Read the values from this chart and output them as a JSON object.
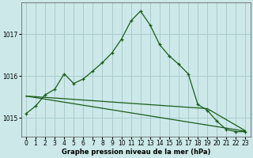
{
  "title": "Graphe pression niveau de la mer (hPa)",
  "bg_color": "#cce8e8",
  "grid_color": "#aacccc",
  "line_color": "#1a5c1a",
  "xlim": [
    -0.5,
    23.5
  ],
  "ylim": [
    1014.55,
    1017.75
  ],
  "yticks": [
    1015,
    1016,
    1017
  ],
  "xticks": [
    0,
    1,
    2,
    3,
    4,
    5,
    6,
    7,
    8,
    9,
    10,
    11,
    12,
    13,
    14,
    15,
    16,
    17,
    18,
    19,
    20,
    21,
    22,
    23
  ],
  "line1_x": [
    0,
    1,
    2,
    3,
    4,
    5,
    6,
    7,
    8,
    9,
    10,
    11,
    12,
    13,
    14,
    15,
    16,
    17,
    18,
    19,
    20,
    21,
    22,
    23
  ],
  "line1_y": [
    1015.1,
    1015.28,
    1015.55,
    1015.68,
    1016.05,
    1015.82,
    1015.93,
    1016.12,
    1016.32,
    1016.55,
    1016.88,
    1017.32,
    1017.55,
    1017.22,
    1016.75,
    1016.48,
    1016.28,
    1016.05,
    1015.32,
    1015.18,
    1014.92,
    1014.72,
    1014.67,
    1014.67
  ],
  "line2_x": [
    0,
    23
  ],
  "line2_y": [
    1015.52,
    1014.68
  ],
  "line3_x": [
    0,
    19,
    23
  ],
  "line3_y": [
    1015.52,
    1015.22,
    1014.69
  ],
  "xlabel_fontsize": 6,
  "tick_fontsize": 5.5,
  "title_fontweight": "bold"
}
